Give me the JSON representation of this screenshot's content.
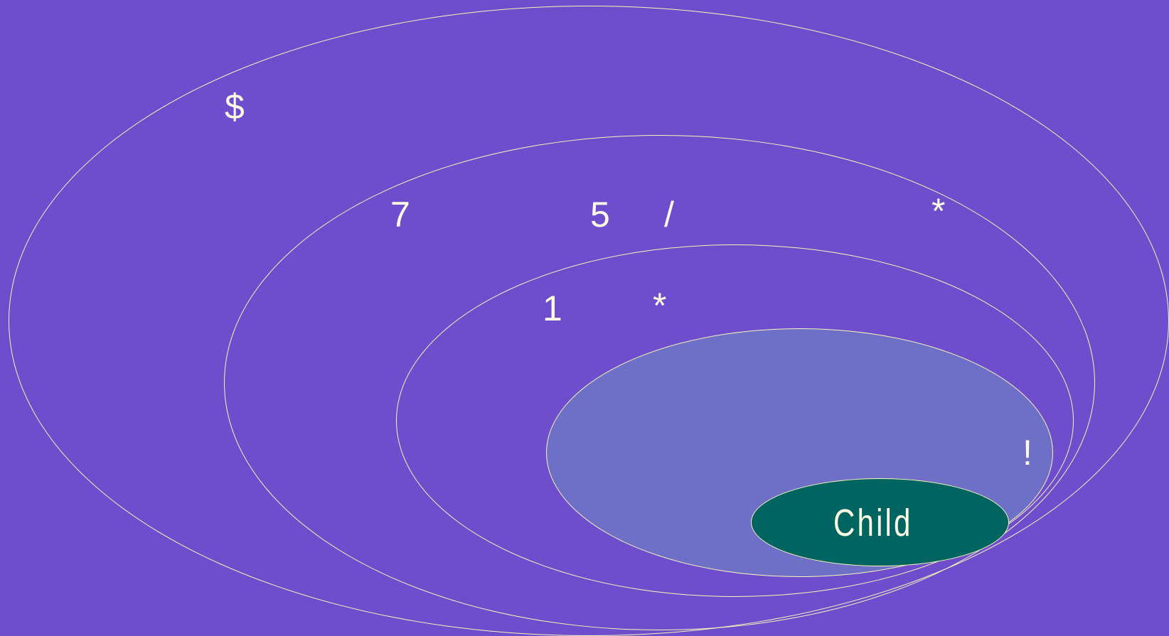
{
  "diagram": {
    "labels": {
      "dollar": "$",
      "seven": "7",
      "five": "5",
      "slash": "/",
      "star_top_right": "*",
      "one": "1",
      "star_mid": "*",
      "exclaim": "!"
    },
    "child_label": "Child"
  },
  "colors": {
    "background": "#6e4ecc",
    "outline": "#fbf6b8",
    "inner_fill": "#6d70c6",
    "child_fill": "#006561",
    "text": "#fdfbe3"
  }
}
